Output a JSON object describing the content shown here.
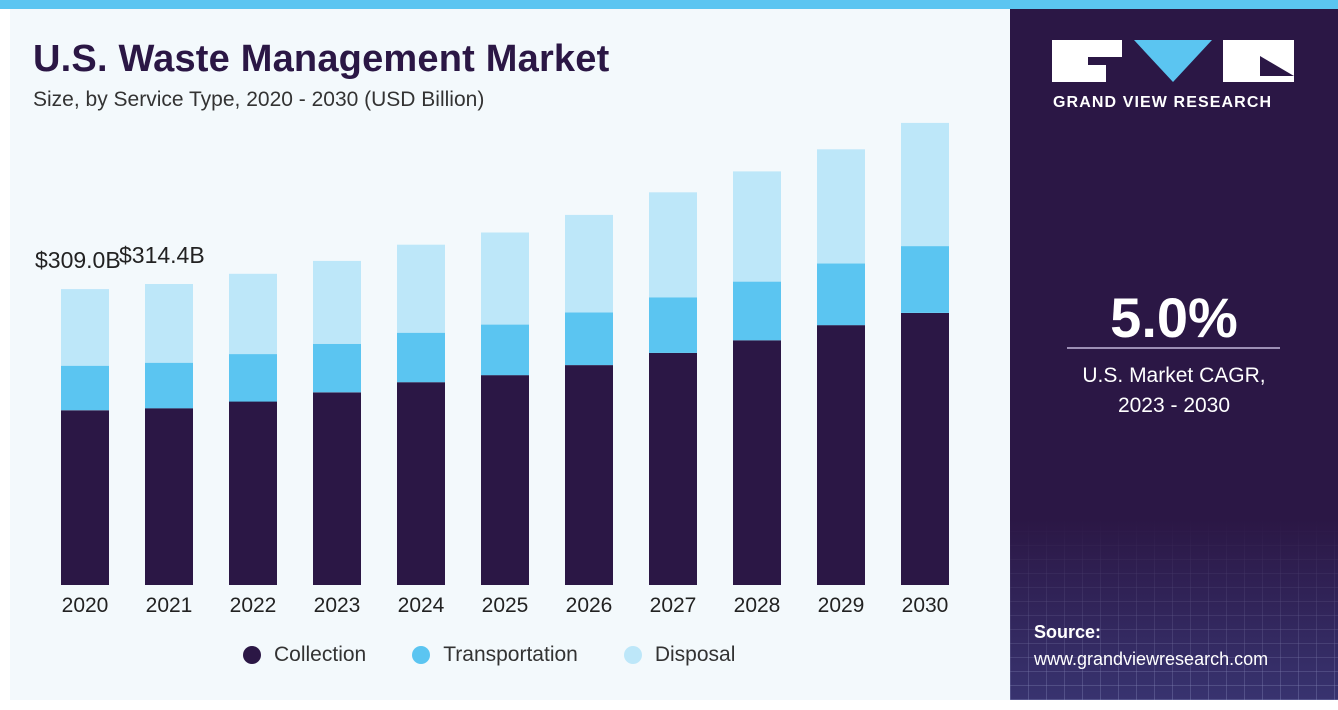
{
  "header": {
    "title": "U.S. Waste Management Market",
    "subtitle": "Size, by Service Type, 2020 - 2030 (USD Billion)"
  },
  "brand": {
    "name": "GRAND VIEW RESEARCH",
    "logo_icon": "gvr-logo-icon"
  },
  "stat": {
    "value": "5.0%",
    "label_line1": "U.S. Market CAGR,",
    "label_line2": "2023 - 2030"
  },
  "source": {
    "label": "Source:",
    "url": "www.grandviewresearch.com"
  },
  "colors": {
    "collection": "#2b1745",
    "transportation": "#5bc5f1",
    "disposal": "#bde7f9",
    "panel": "#2b1745",
    "accent": "#5bc5f1"
  },
  "chart_data": {
    "type": "bar",
    "stacked": true,
    "categories": [
      "2020",
      "2021",
      "2022",
      "2023",
      "2024",
      "2025",
      "2026",
      "2027",
      "2028",
      "2029",
      "2030"
    ],
    "series": [
      {
        "name": "Collection",
        "values": [
          182.5,
          184.6,
          191.6,
          201.2,
          211.8,
          219.2,
          229.7,
          242.4,
          255.6,
          271.4,
          284.1
        ]
      },
      {
        "name": "Transportation",
        "values": [
          46.5,
          47.6,
          49.6,
          50.7,
          51.7,
          52.8,
          55.0,
          58.1,
          61.3,
          64.5,
          69.8
        ]
      },
      {
        "name": "Disposal",
        "values": [
          80.0,
          82.2,
          83.8,
          86.6,
          91.9,
          96.1,
          101.8,
          109.6,
          115.1,
          119.1,
          128.7
        ]
      }
    ],
    "data_labels": [
      {
        "category": "2020",
        "text": "$309.0B"
      },
      {
        "category": "2021",
        "text": "$314.4B"
      }
    ],
    "legend_position": "bottom",
    "grid": false,
    "y_axis_visible": false,
    "ylim": [
      0,
      470
    ]
  }
}
